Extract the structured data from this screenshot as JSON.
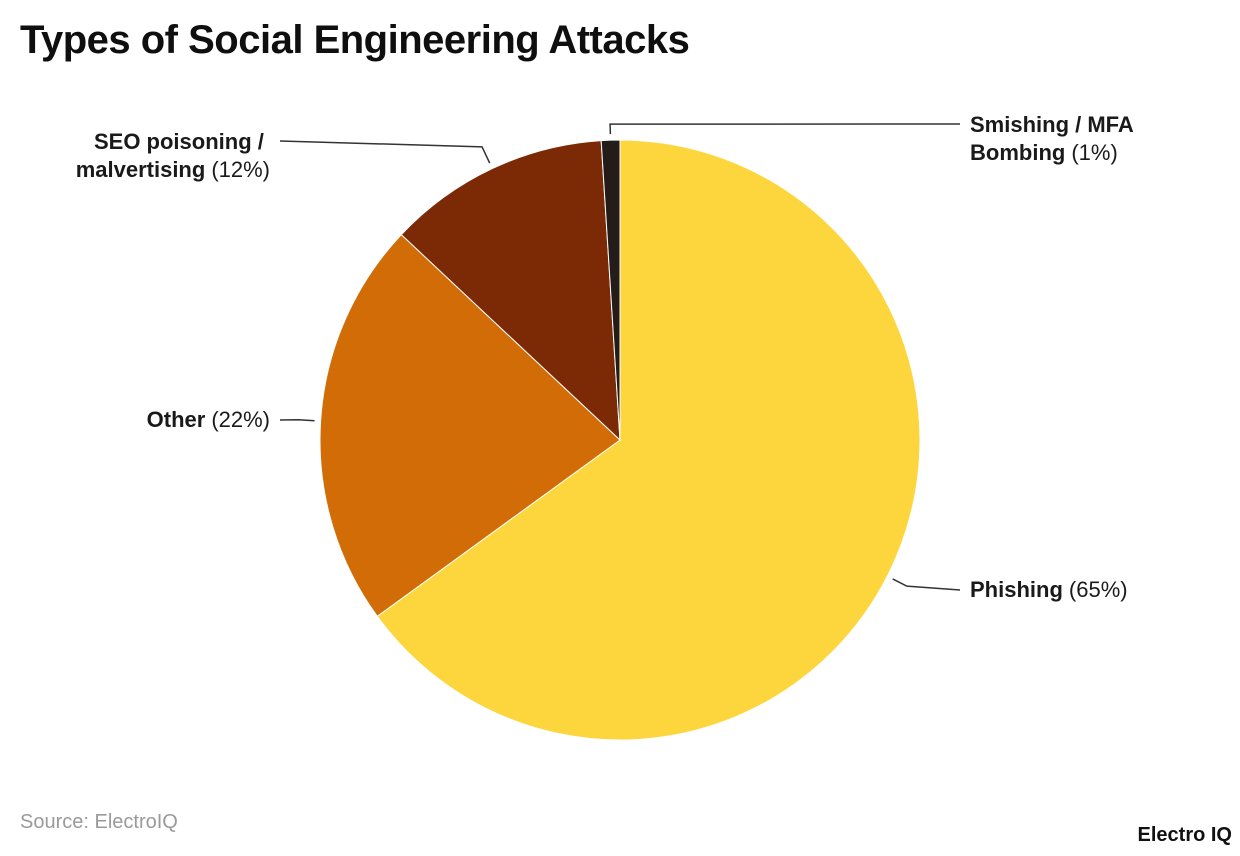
{
  "title": "Types of Social Engineering Attacks",
  "source": "Source: ElectroIQ",
  "brand": "Electro IQ",
  "chart_data": {
    "type": "pie",
    "title": "Types of Social Engineering Attacks",
    "slices": [
      {
        "label": "Phishing",
        "value": 65,
        "display": "(65%)",
        "color": "#fdd53d"
      },
      {
        "label": "Other",
        "value": 22,
        "display": "(22%)",
        "color": "#d16c07"
      },
      {
        "label": "SEO poisoning / malvertising",
        "value": 12,
        "display": "(12%)",
        "color": "#7c2a06"
      },
      {
        "label": "Smishing / MFA Bombing",
        "value": 1,
        "display": "(1%)",
        "color": "#231c19"
      }
    ]
  }
}
